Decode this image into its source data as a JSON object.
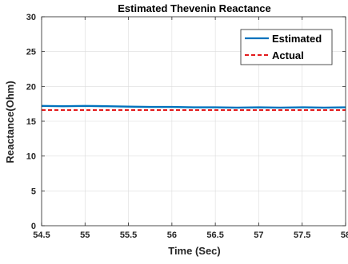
{
  "chart_data": {
    "type": "line",
    "title": "Estimated Thevenin Reactance",
    "xlabel": "Time (Sec)",
    "ylabel": "Reactance(Ohm)",
    "xlim": [
      54.5,
      58
    ],
    "ylim": [
      0,
      30
    ],
    "xticks": [
      54.5,
      55,
      55.5,
      56,
      56.5,
      57,
      57.5,
      58
    ],
    "xtick_labels": [
      "54.5",
      "55",
      "55.5",
      "56",
      "56.5",
      "57",
      "57.5",
      "58"
    ],
    "yticks": [
      0,
      5,
      10,
      15,
      20,
      25,
      30
    ],
    "ytick_labels": [
      "0",
      "5",
      "10",
      "15",
      "20",
      "25",
      "30"
    ],
    "grid": true,
    "legend_position": "top-right",
    "series": [
      {
        "name": "Estimated",
        "color": "#0072bd",
        "style": "solid",
        "x": [
          54.5,
          54.75,
          55.0,
          55.25,
          55.5,
          55.75,
          56.0,
          56.25,
          56.5,
          56.75,
          57.0,
          57.25,
          57.5,
          57.75,
          58.0
        ],
        "y": [
          17.2,
          17.15,
          17.2,
          17.15,
          17.1,
          17.05,
          17.05,
          17.0,
          17.0,
          16.95,
          17.0,
          16.95,
          17.0,
          16.95,
          17.0
        ]
      },
      {
        "name": "Actual",
        "color": "#e31a1c",
        "style": "dashed",
        "x": [
          54.5,
          58.0
        ],
        "y": [
          16.6,
          16.6
        ]
      }
    ]
  }
}
